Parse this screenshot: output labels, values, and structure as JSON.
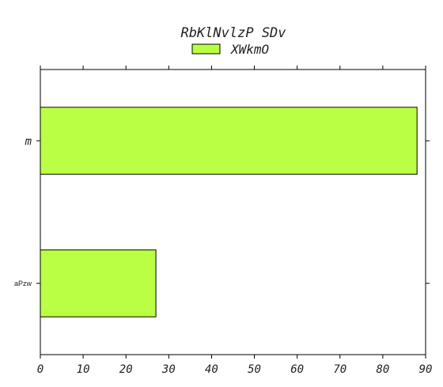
{
  "chart_data": {
    "type": "bar",
    "orientation": "horizontal",
    "title": "RbKlNvlzP  SDv",
    "categories": [
      "m",
      "aPzw"
    ],
    "series": [
      {
        "name": "XWkmO",
        "values": [
          88,
          27
        ],
        "color": "#bbff44"
      }
    ],
    "xlim": [
      0,
      90
    ],
    "xticks": [
      0,
      10,
      20,
      30,
      40,
      50,
      60,
      70,
      80,
      90
    ],
    "xlabel": "",
    "ylabel": "",
    "grid": false,
    "legend": "top-center"
  }
}
